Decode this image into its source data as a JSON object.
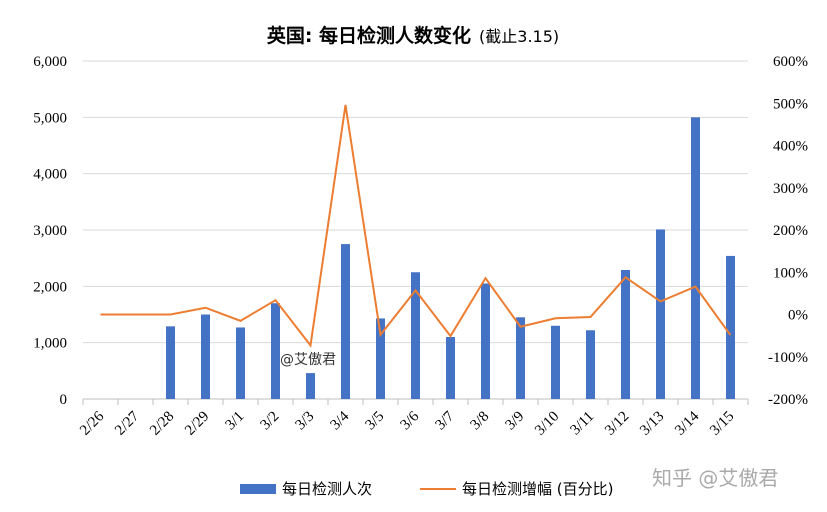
{
  "chart_data": {
    "type": "bar",
    "title": "英国: 每日检测人数变化",
    "subtitle": "(截止3.15)",
    "categories": [
      "2/26",
      "2/27",
      "2/28",
      "2/29",
      "3/1",
      "3/2",
      "3/3",
      "3/4",
      "3/5",
      "3/6",
      "3/7",
      "3/8",
      "3/9",
      "3/10",
      "3/11",
      "3/12",
      "3/13",
      "3/14",
      "3/15"
    ],
    "series": [
      {
        "name": "每日检测人次",
        "type": "bar",
        "axis": "left",
        "color": "#4472C4",
        "values": [
          null,
          null,
          1290,
          1500,
          1270,
          1700,
          460,
          2750,
          1430,
          2250,
          1100,
          2050,
          1450,
          1300,
          1220,
          2290,
          3010,
          5000,
          2540
        ]
      },
      {
        "name": "每日检测增幅 (百分比)",
        "type": "line",
        "axis": "right",
        "color": "#ED7D31",
        "values": [
          0,
          0,
          0,
          16,
          -15,
          34,
          -73,
          496,
          -48,
          57,
          -51,
          86,
          -29,
          -9,
          -6,
          88,
          31,
          66,
          -49
        ]
      }
    ],
    "ylim": [
      0,
      6000
    ],
    "y_ticks": [
      "0",
      "1,000",
      "2,000",
      "3,000",
      "4,000",
      "5,000",
      "6,000"
    ],
    "y2lim": [
      -200,
      600
    ],
    "y2_ticks": [
      "-200%",
      "-100%",
      "0%",
      "100%",
      "200%",
      "300%",
      "400%",
      "500%",
      "600%"
    ],
    "grid": true,
    "legend_position": "bottom",
    "annotation": "@艾傲君",
    "watermark": "知乎 @艾傲君"
  }
}
